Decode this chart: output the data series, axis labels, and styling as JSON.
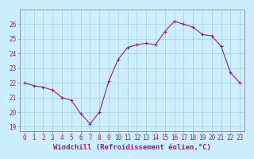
{
  "x": [
    0,
    1,
    2,
    3,
    4,
    5,
    6,
    7,
    8,
    9,
    10,
    11,
    12,
    13,
    14,
    15,
    16,
    17,
    18,
    19,
    20,
    21,
    22,
    23
  ],
  "y": [
    22.0,
    21.8,
    21.7,
    21.5,
    21.0,
    20.8,
    19.9,
    19.2,
    20.0,
    22.1,
    23.6,
    24.4,
    24.6,
    24.7,
    24.6,
    25.5,
    26.2,
    26.0,
    25.8,
    25.3,
    25.2,
    24.5,
    22.7,
    22.0
  ],
  "line_color": "#882288",
  "marker": "+",
  "bg_color": "#cceeff",
  "grid_color": "#aacccc",
  "label_color": "#882288",
  "xlabel": "Windchill (Refroidissement éolien,°C)",
  "ylim_min": 18.7,
  "ylim_max": 27.0,
  "yticks": [
    19,
    20,
    21,
    22,
    23,
    24,
    25,
    26
  ],
  "xticks": [
    0,
    1,
    2,
    3,
    4,
    5,
    6,
    7,
    8,
    9,
    10,
    11,
    12,
    13,
    14,
    15,
    16,
    17,
    18,
    19,
    20,
    21,
    22,
    23
  ],
  "tick_fontsize": 5.5,
  "xlabel_fontsize": 6.5
}
